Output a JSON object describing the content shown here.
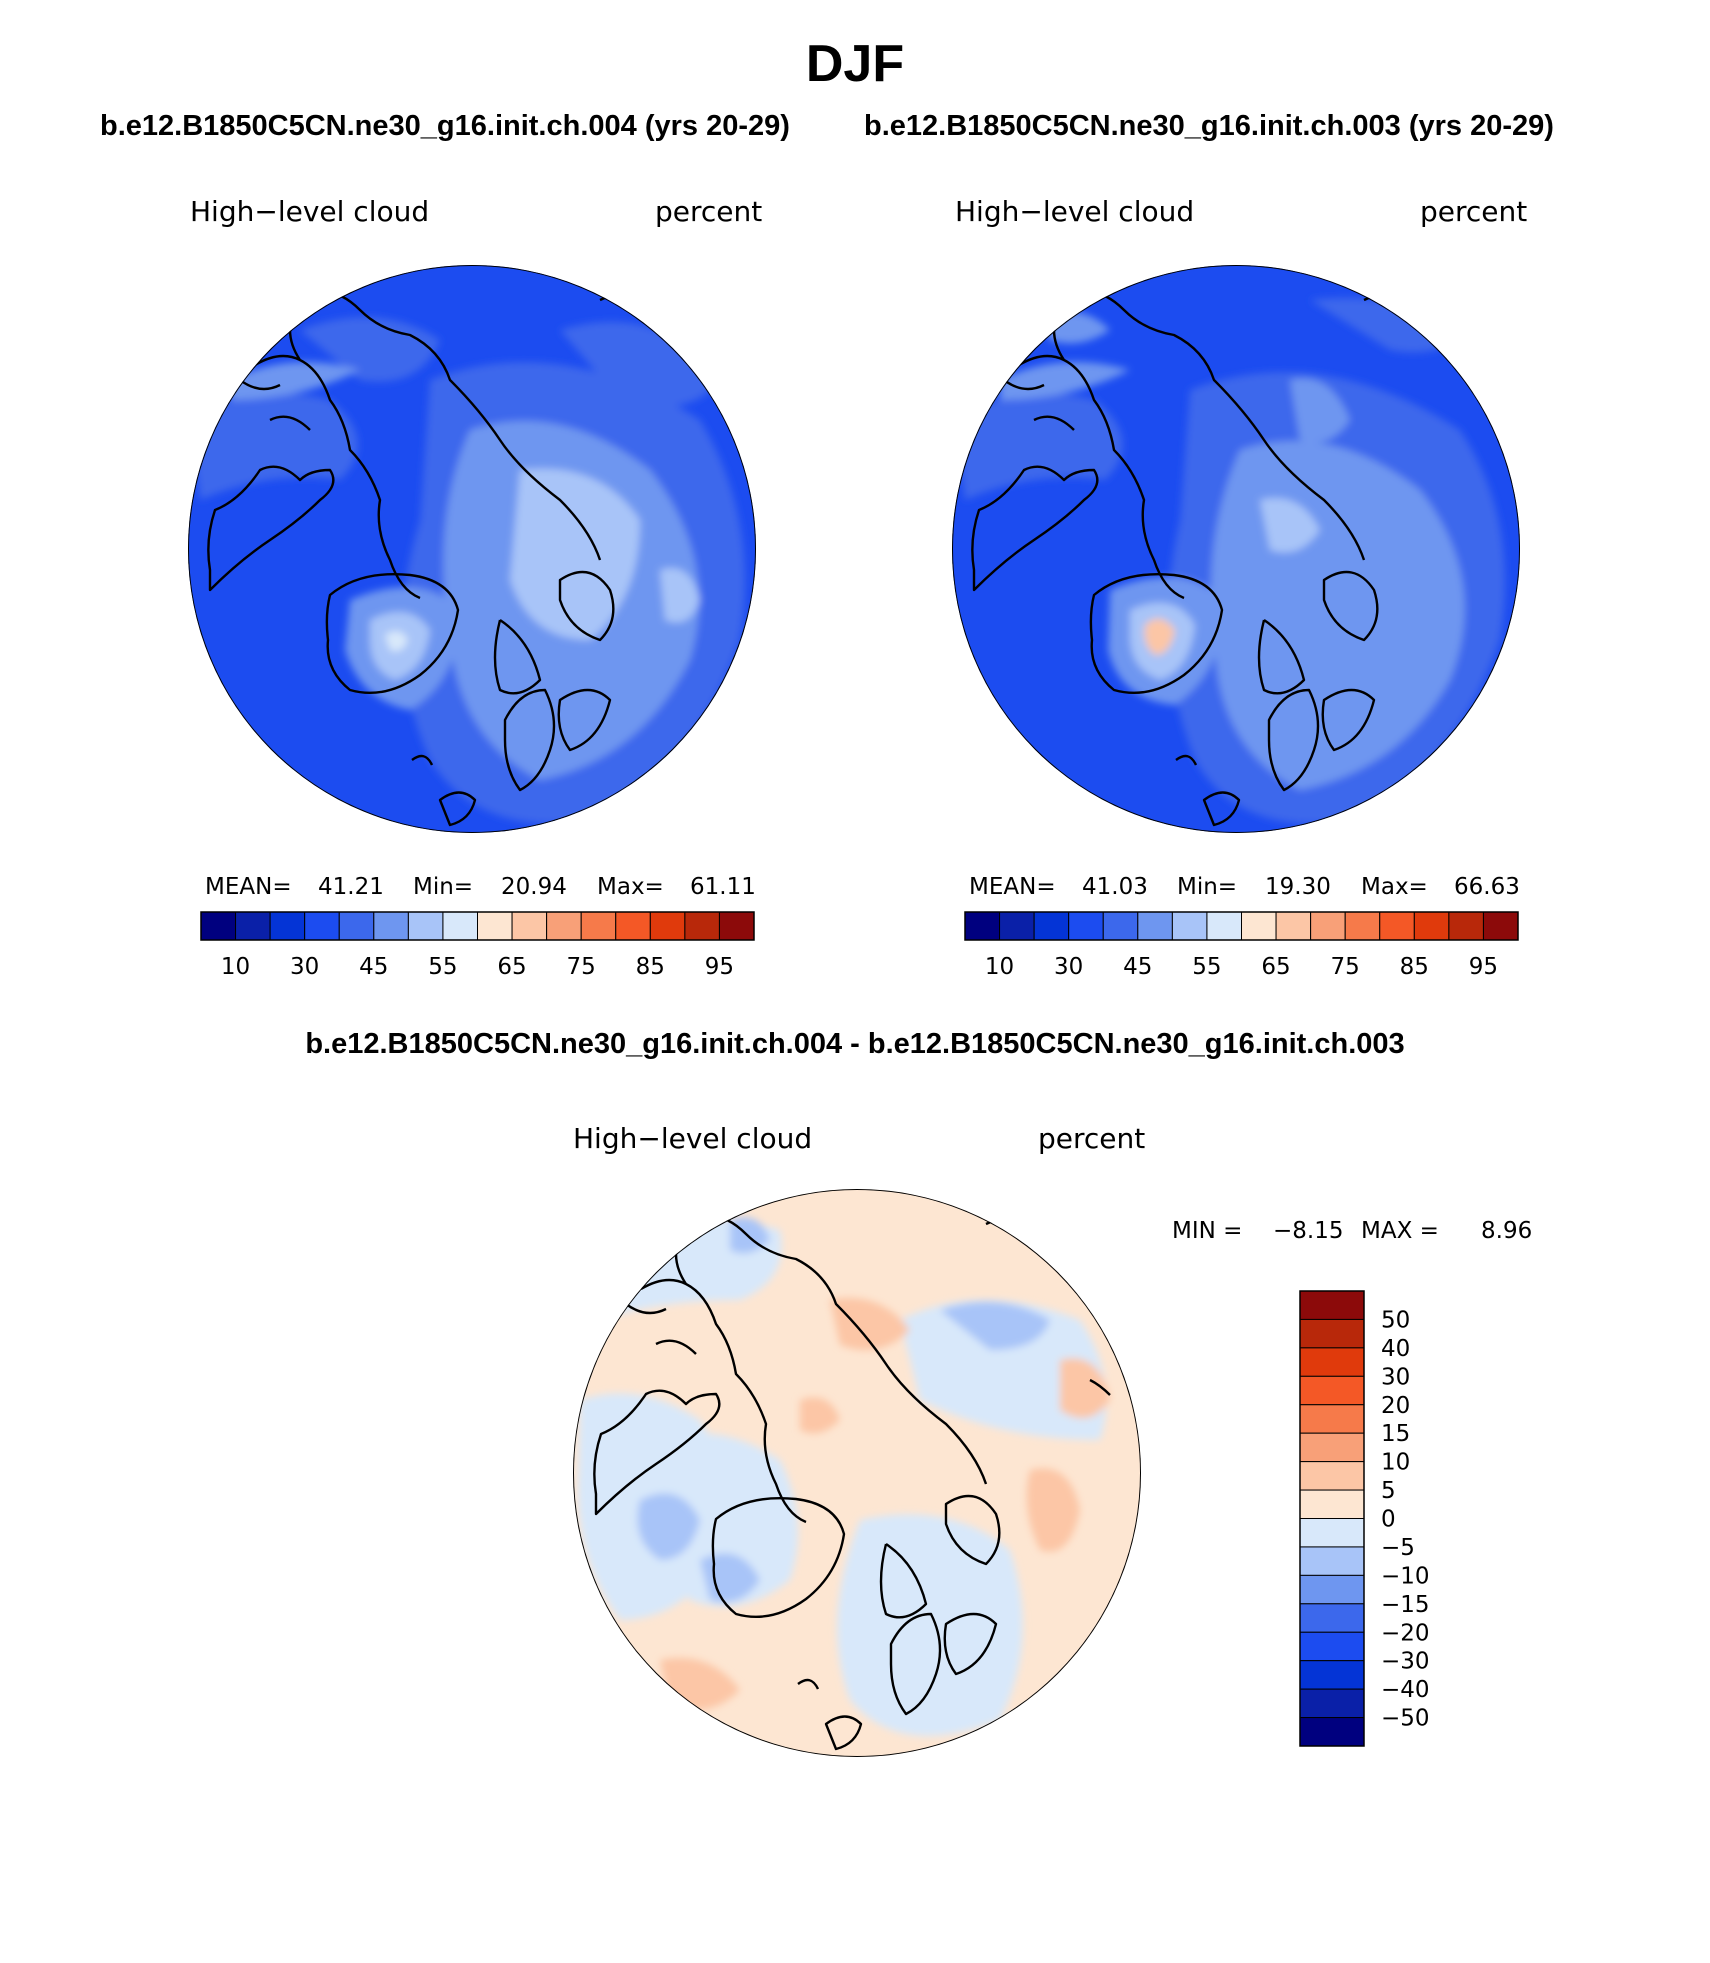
{
  "page": {
    "title": "DJF",
    "left_case_title": "b.e12.B1850C5CN.ne30_g16.init.ch.004 (yrs 20-29)",
    "right_case_title": "b.e12.B1850C5CN.ne30_g16.init.ch.003 (yrs 20-29)",
    "diff_title": "b.e12.B1850C5CN.ne30_g16.init.ch.004 - b.e12.B1850C5CN.ne30_g16.init.ch.003"
  },
  "panels": {
    "left": {
      "variable": "High−level cloud",
      "units": "percent",
      "stats": {
        "mean_label": "MEAN=",
        "mean": "41.21",
        "min_label": "Min=",
        "min": "20.94",
        "max_label": "Max=",
        "max": "61.11"
      }
    },
    "right": {
      "variable": "High−level cloud",
      "units": "percent",
      "stats": {
        "mean_label": "MEAN=",
        "mean": "41.03",
        "min_label": "Min=",
        "min": "19.30",
        "max_label": "Max=",
        "max": "66.63"
      }
    },
    "diff": {
      "variable": "High−level cloud",
      "units": "percent",
      "stats": {
        "min_label": "MIN =",
        "min": "−8.15",
        "max_label": "MAX =",
        "max": "8.96"
      }
    }
  },
  "colorbar_abs": {
    "colors": [
      "#00007f",
      "#0a20a8",
      "#0434d6",
      "#1c4cf0",
      "#3c68ec",
      "#6e96f0",
      "#a8c4f8",
      "#d8e8fa",
      "#fde6d2",
      "#fcc6a6",
      "#f8a078",
      "#f67a4a",
      "#f45826",
      "#e03a0c",
      "#b8280a",
      "#8c0a0a"
    ],
    "tick_labels": [
      "10",
      "30",
      "45",
      "55",
      "65",
      "75",
      "85",
      "95"
    ]
  },
  "colorbar_diff": {
    "colors": [
      "#8c0a0a",
      "#b8280a",
      "#e03a0c",
      "#f45826",
      "#f67a4a",
      "#f8a078",
      "#fcc6a6",
      "#fde6d2",
      "#d8e8fa",
      "#a8c4f8",
      "#6e96f0",
      "#3c68ec",
      "#1c4cf0",
      "#0434d6",
      "#0a20a8",
      "#00007f"
    ],
    "tick_labels": [
      "50",
      "40",
      "30",
      "20",
      "15",
      "10",
      "5",
      "0",
      "−5",
      "−10",
      "−15",
      "−20",
      "−30",
      "−40",
      "−50"
    ]
  }
}
